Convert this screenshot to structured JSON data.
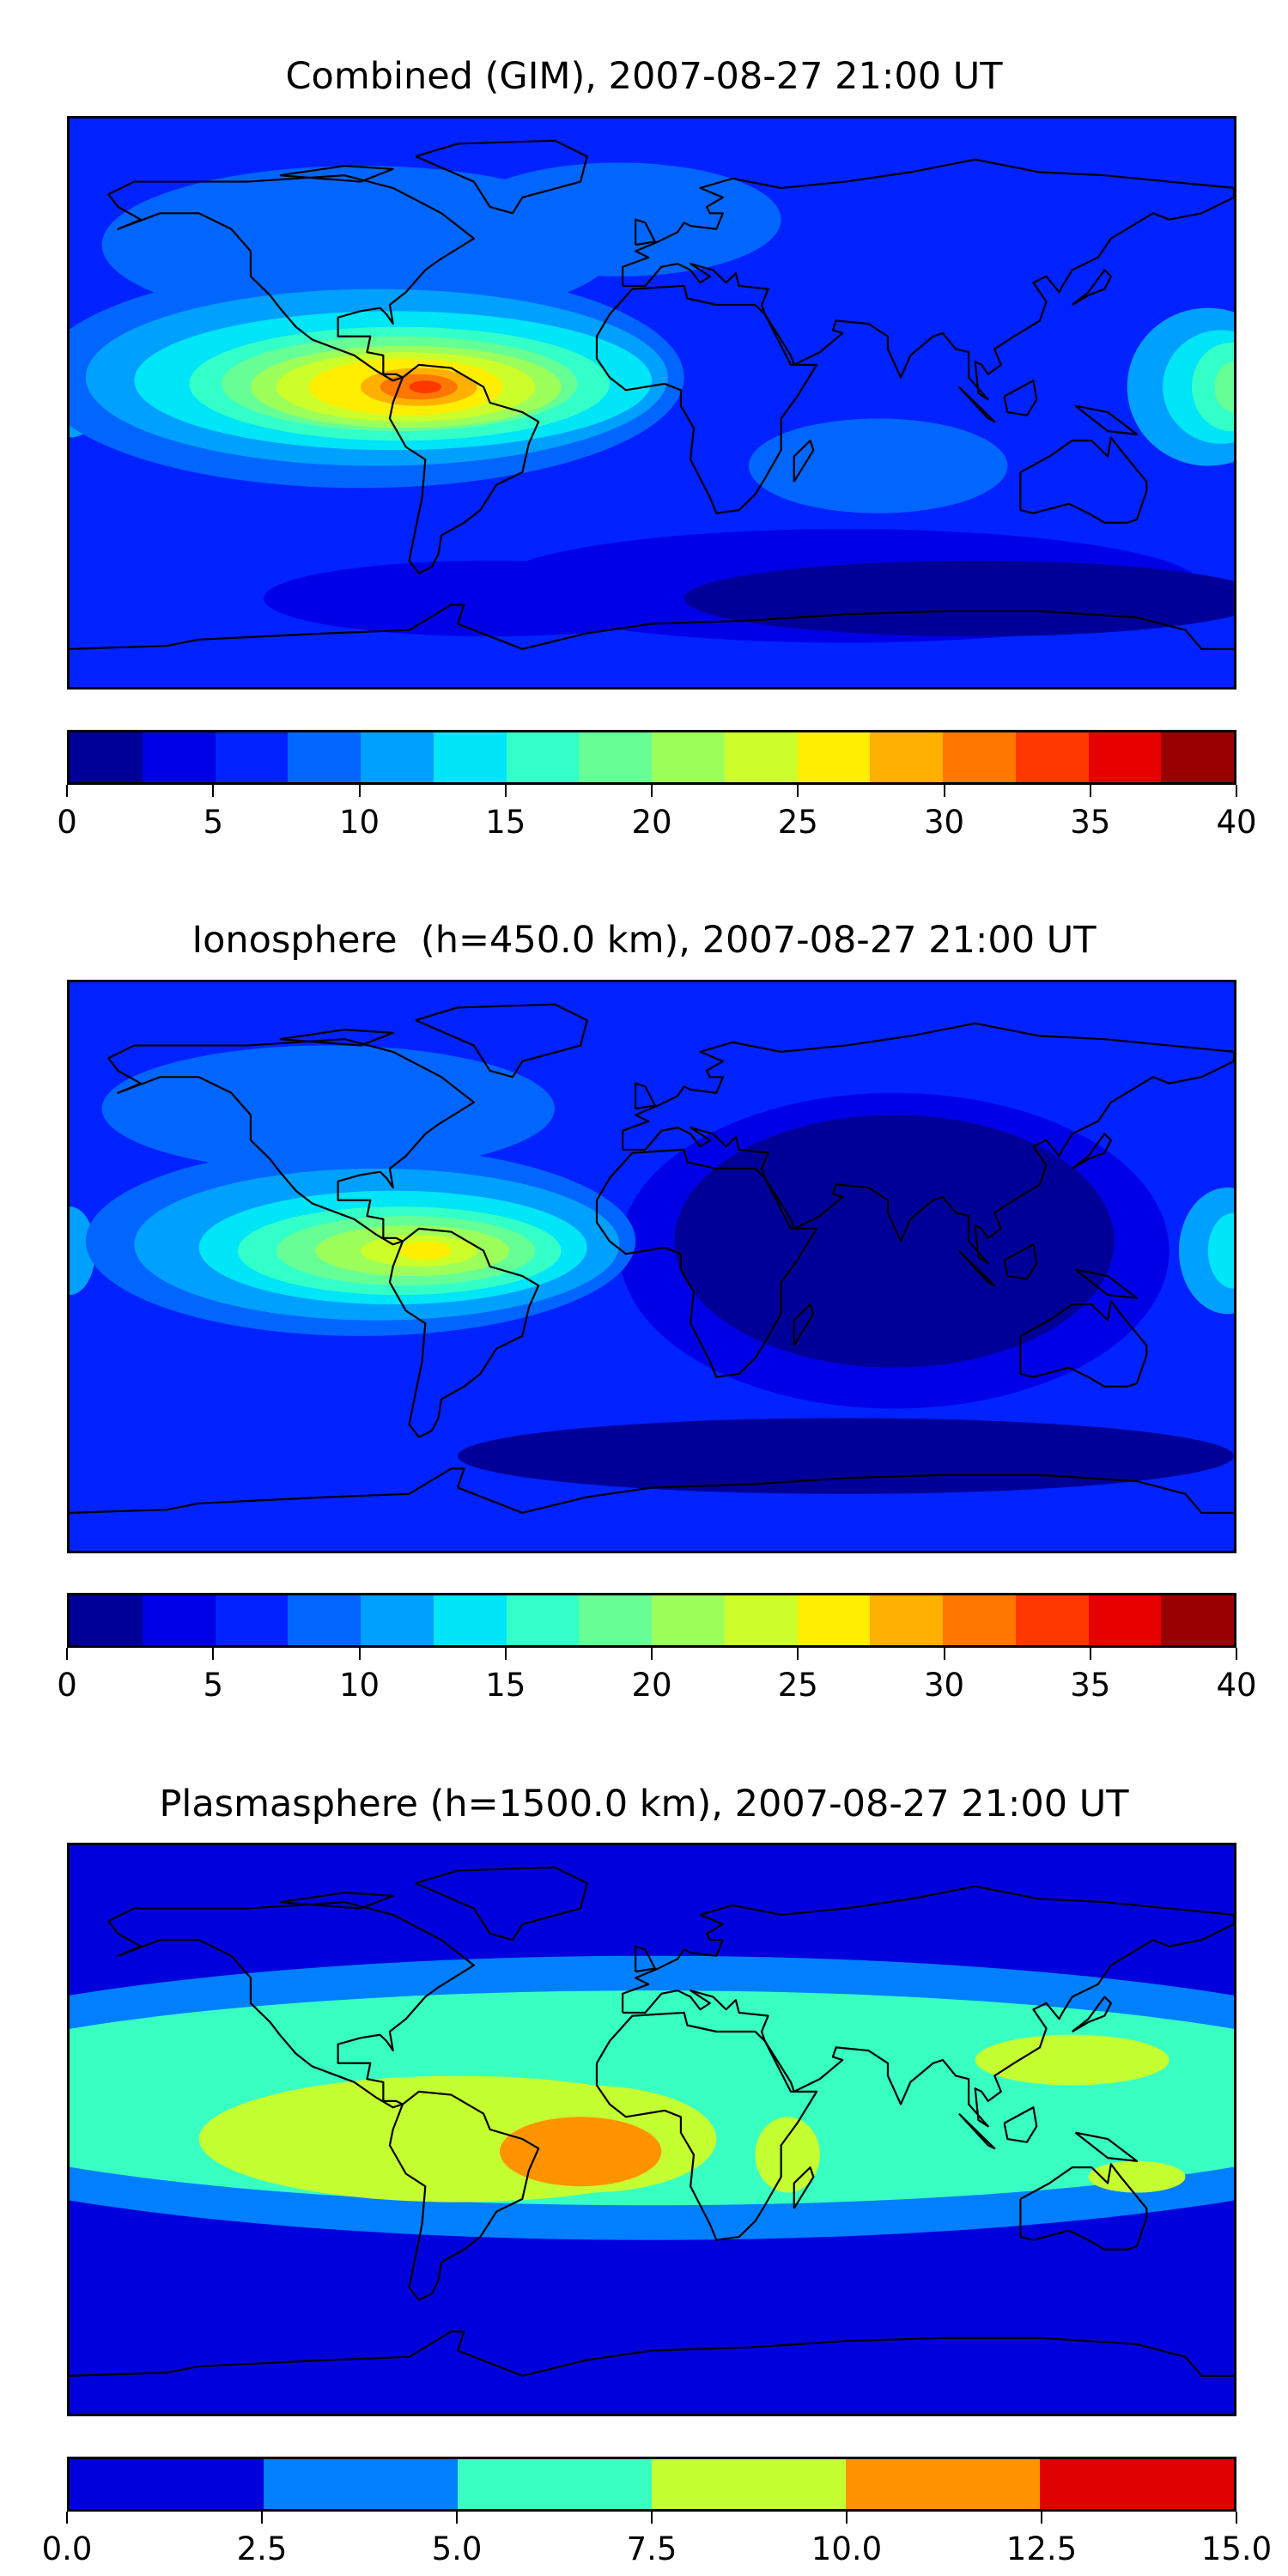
{
  "chart_data": [
    {
      "type": "heatmap",
      "title": "Combined (GIM), 2007-08-27 21:00 UT",
      "colorbar": {
        "levels": [
          0,
          2.5,
          5,
          7.5,
          10,
          12.5,
          15,
          17.5,
          20,
          22.5,
          25,
          27.5,
          30,
          32.5,
          35,
          37.5,
          40
        ],
        "colors": [
          "#000099",
          "#0000e6",
          "#0022ff",
          "#0066ff",
          "#00a0ff",
          "#00e5f8",
          "#33ffc8",
          "#66ff96",
          "#9dff5a",
          "#ccff2a",
          "#ffee00",
          "#ffb000",
          "#ff7600",
          "#ff3800",
          "#e60000",
          "#990000"
        ],
        "ticks": [
          "0",
          "5",
          "10",
          "15",
          "20",
          "25",
          "30",
          "35",
          "40"
        ],
        "tick_values": [
          0,
          5,
          10,
          15,
          20,
          25,
          30,
          35,
          40
        ],
        "range": [
          0,
          40
        ]
      },
      "peak_region": "northern South America / Caribbean, about 30-35"
    },
    {
      "type": "heatmap",
      "title": "Ionosphere  (h=450.0 km), 2007-08-27 21:00 UT",
      "colorbar": {
        "levels": [
          0,
          2.5,
          5,
          7.5,
          10,
          12.5,
          15,
          17.5,
          20,
          22.5,
          25,
          27.5,
          30,
          32.5,
          35,
          37.5,
          40
        ],
        "colors": [
          "#000099",
          "#0000e6",
          "#0022ff",
          "#0066ff",
          "#00a0ff",
          "#00e5f8",
          "#33ffc8",
          "#66ff96",
          "#9dff5a",
          "#ccff2a",
          "#ffee00",
          "#ffb000",
          "#ff7600",
          "#ff3800",
          "#e60000",
          "#990000"
        ],
        "ticks": [
          "0",
          "5",
          "10",
          "15",
          "20",
          "25",
          "30",
          "35",
          "40"
        ],
        "tick_values": [
          0,
          5,
          10,
          15,
          20,
          25,
          30,
          35,
          40
        ],
        "range": [
          0,
          40
        ]
      },
      "peak_region": "northern South America, about 25-27.5"
    },
    {
      "type": "heatmap",
      "title": "Plasmasphere (h=1500.0 km), 2007-08-27 21:00 UT",
      "colorbar": {
        "levels": [
          0,
          2.5,
          5,
          7.5,
          10,
          12.5,
          15
        ],
        "colors": [
          "#0000dd",
          "#0080ff",
          "#38ffc2",
          "#c4ff32",
          "#ff9400",
          "#df0000"
        ],
        "ticks": [
          "0.0",
          "2.5",
          "5.0",
          "7.5",
          "10.0",
          "12.5",
          "15.0"
        ],
        "tick_values": [
          0,
          2.5,
          5,
          7.5,
          10,
          12.5,
          15
        ],
        "range": [
          0,
          15
        ]
      },
      "peak_region": "South Atlantic / West Africa, 10-12.5"
    }
  ]
}
